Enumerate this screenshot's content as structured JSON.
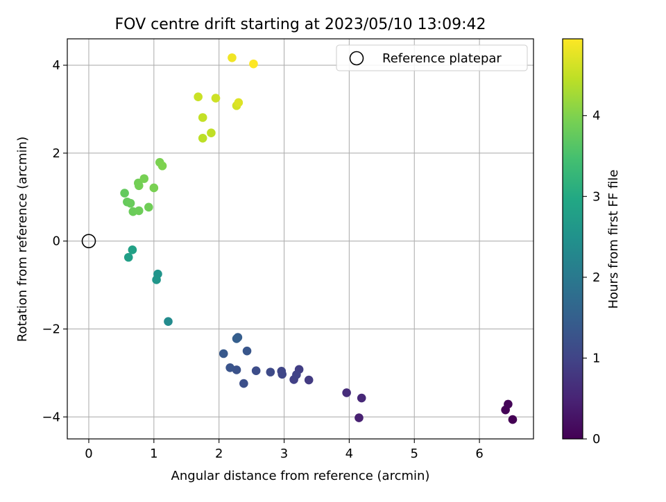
{
  "chart_data": {
    "type": "scatter",
    "title": "FOV centre drift starting at 2023/05/10 13:09:42",
    "xlabel": "Angular distance from reference (arcmin)",
    "ylabel": "Rotation from reference (arcmin)",
    "xlim": [
      -0.33,
      6.83
    ],
    "ylim": [
      -4.5,
      4.6
    ],
    "xticks": [
      0,
      1,
      2,
      3,
      4,
      5,
      6
    ],
    "yticks": [
      -4,
      -2,
      0,
      2,
      4
    ],
    "grid": true,
    "legend": {
      "placement": "top-right",
      "entries": [
        "Reference platepar"
      ]
    },
    "reference_point": {
      "label": "Reference platepar",
      "x": 0,
      "y": 0
    },
    "colorbar": {
      "label": "Hours from first FF file",
      "range": [
        0,
        4.95
      ],
      "ticks": [
        0,
        1,
        2,
        3,
        4
      ],
      "colormap": "viridis"
    },
    "points": [
      {
        "x": 6.51,
        "y": -4.06,
        "h": 0.0
      },
      {
        "x": 6.4,
        "y": -3.84,
        "h": 0.03
      },
      {
        "x": 6.44,
        "y": -3.71,
        "h": 0.06
      },
      {
        "x": 4.15,
        "y": -4.02,
        "h": 0.45
      },
      {
        "x": 4.19,
        "y": -3.57,
        "h": 0.55
      },
      {
        "x": 3.96,
        "y": -3.45,
        "h": 0.62
      },
      {
        "x": 3.38,
        "y": -3.16,
        "h": 0.85
      },
      {
        "x": 3.23,
        "y": -2.92,
        "h": 0.9
      },
      {
        "x": 3.15,
        "y": -3.15,
        "h": 0.95
      },
      {
        "x": 3.19,
        "y": -3.04,
        "h": 0.98
      },
      {
        "x": 2.96,
        "y": -2.96,
        "h": 1.02
      },
      {
        "x": 2.97,
        "y": -3.03,
        "h": 1.05
      },
      {
        "x": 2.79,
        "y": -2.98,
        "h": 1.1
      },
      {
        "x": 2.57,
        "y": -2.95,
        "h": 1.15
      },
      {
        "x": 2.38,
        "y": -3.24,
        "h": 1.2
      },
      {
        "x": 2.27,
        "y": -2.93,
        "h": 1.25
      },
      {
        "x": 2.17,
        "y": -2.88,
        "h": 1.28
      },
      {
        "x": 2.43,
        "y": -2.5,
        "h": 1.32
      },
      {
        "x": 2.07,
        "y": -2.56,
        "h": 1.38
      },
      {
        "x": 2.29,
        "y": -2.19,
        "h": 1.45
      },
      {
        "x": 2.27,
        "y": -2.22,
        "h": 1.48
      },
      {
        "x": 1.22,
        "y": -1.83,
        "h": 2.35
      },
      {
        "x": 1.06,
        "y": -0.75,
        "h": 2.55
      },
      {
        "x": 1.04,
        "y": -0.88,
        "h": 2.58
      },
      {
        "x": 0.61,
        "y": -0.37,
        "h": 2.78
      },
      {
        "x": 0.67,
        "y": -0.2,
        "h": 2.82
      },
      {
        "x": 0.55,
        "y": 1.09,
        "h": 3.75
      },
      {
        "x": 0.59,
        "y": 0.89,
        "h": 3.78
      },
      {
        "x": 0.64,
        "y": 0.86,
        "h": 3.8
      },
      {
        "x": 0.68,
        "y": 0.67,
        "h": 3.82
      },
      {
        "x": 0.77,
        "y": 0.69,
        "h": 3.84
      },
      {
        "x": 0.92,
        "y": 0.77,
        "h": 3.86
      },
      {
        "x": 0.76,
        "y": 1.32,
        "h": 3.88
      },
      {
        "x": 0.77,
        "y": 1.26,
        "h": 3.9
      },
      {
        "x": 0.85,
        "y": 1.42,
        "h": 3.92
      },
      {
        "x": 1.0,
        "y": 1.21,
        "h": 3.94
      },
      {
        "x": 1.09,
        "y": 1.79,
        "h": 3.96
      },
      {
        "x": 1.13,
        "y": 1.71,
        "h": 3.98
      },
      {
        "x": 1.75,
        "y": 2.34,
        "h": 4.45
      },
      {
        "x": 1.88,
        "y": 2.46,
        "h": 4.48
      },
      {
        "x": 1.75,
        "y": 2.81,
        "h": 4.5
      },
      {
        "x": 1.68,
        "y": 3.28,
        "h": 4.55
      },
      {
        "x": 1.95,
        "y": 3.25,
        "h": 4.58
      },
      {
        "x": 2.27,
        "y": 3.08,
        "h": 4.62
      },
      {
        "x": 2.3,
        "y": 3.15,
        "h": 4.7
      },
      {
        "x": 2.2,
        "y": 4.17,
        "h": 4.85
      },
      {
        "x": 2.53,
        "y": 4.03,
        "h": 4.95
      }
    ]
  }
}
